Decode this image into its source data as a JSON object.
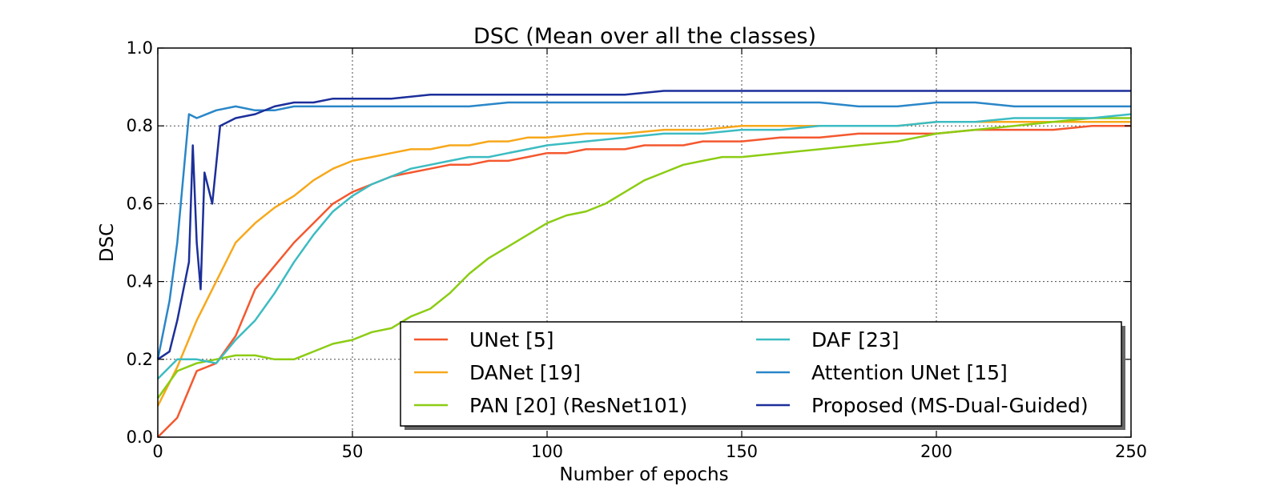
{
  "chart_data": {
    "type": "line",
    "title": "DSC (Mean over all the classes)",
    "xlabel": "Number of epochs",
    "ylabel": "DSC",
    "xlim": [
      0,
      250
    ],
    "ylim": [
      0.0,
      1.0
    ],
    "xticks": [
      0,
      50,
      100,
      150,
      200,
      250
    ],
    "yticks": [
      0.0,
      0.2,
      0.4,
      0.6,
      0.8,
      1.0
    ],
    "xtick_labels": [
      "0",
      "50",
      "100",
      "150",
      "200",
      "250"
    ],
    "ytick_labels": [
      "0.0",
      "0.2",
      "0.4",
      "0.6",
      "0.8",
      "1.0"
    ],
    "grid": true,
    "legend_position": "lower-right",
    "series": [
      {
        "name": "UNet [5]",
        "color": "#f4582f",
        "points": [
          [
            0,
            0.0
          ],
          [
            5,
            0.05
          ],
          [
            10,
            0.17
          ],
          [
            15,
            0.19
          ],
          [
            20,
            0.26
          ],
          [
            25,
            0.38
          ],
          [
            30,
            0.44
          ],
          [
            35,
            0.5
          ],
          [
            40,
            0.55
          ],
          [
            45,
            0.6
          ],
          [
            50,
            0.63
          ],
          [
            55,
            0.65
          ],
          [
            60,
            0.67
          ],
          [
            65,
            0.68
          ],
          [
            70,
            0.69
          ],
          [
            75,
            0.7
          ],
          [
            80,
            0.7
          ],
          [
            85,
            0.71
          ],
          [
            90,
            0.71
          ],
          [
            95,
            0.72
          ],
          [
            100,
            0.73
          ],
          [
            105,
            0.73
          ],
          [
            110,
            0.74
          ],
          [
            115,
            0.74
          ],
          [
            120,
            0.74
          ],
          [
            125,
            0.75
          ],
          [
            130,
            0.75
          ],
          [
            135,
            0.75
          ],
          [
            140,
            0.76
          ],
          [
            145,
            0.76
          ],
          [
            150,
            0.76
          ],
          [
            160,
            0.77
          ],
          [
            170,
            0.77
          ],
          [
            180,
            0.78
          ],
          [
            190,
            0.78
          ],
          [
            200,
            0.78
          ],
          [
            210,
            0.79
          ],
          [
            220,
            0.79
          ],
          [
            230,
            0.79
          ],
          [
            240,
            0.8
          ],
          [
            250,
            0.8
          ]
        ]
      },
      {
        "name": "DANet [19]",
        "color": "#f7a81b",
        "points": [
          [
            0,
            0.08
          ],
          [
            5,
            0.18
          ],
          [
            10,
            0.3
          ],
          [
            15,
            0.4
          ],
          [
            20,
            0.5
          ],
          [
            25,
            0.55
          ],
          [
            30,
            0.59
          ],
          [
            35,
            0.62
          ],
          [
            40,
            0.66
          ],
          [
            45,
            0.69
          ],
          [
            50,
            0.71
          ],
          [
            55,
            0.72
          ],
          [
            60,
            0.73
          ],
          [
            65,
            0.74
          ],
          [
            70,
            0.74
          ],
          [
            75,
            0.75
          ],
          [
            80,
            0.75
          ],
          [
            85,
            0.76
          ],
          [
            90,
            0.76
          ],
          [
            95,
            0.77
          ],
          [
            100,
            0.77
          ],
          [
            110,
            0.78
          ],
          [
            120,
            0.78
          ],
          [
            130,
            0.79
          ],
          [
            140,
            0.79
          ],
          [
            150,
            0.8
          ],
          [
            160,
            0.8
          ],
          [
            170,
            0.8
          ],
          [
            180,
            0.8
          ],
          [
            190,
            0.8
          ],
          [
            200,
            0.81
          ],
          [
            210,
            0.81
          ],
          [
            220,
            0.81
          ],
          [
            230,
            0.81
          ],
          [
            240,
            0.81
          ],
          [
            250,
            0.81
          ]
        ]
      },
      {
        "name": "PAN [20] (ResNet101)",
        "color": "#8ccc14",
        "points": [
          [
            0,
            0.1
          ],
          [
            5,
            0.17
          ],
          [
            10,
            0.19
          ],
          [
            15,
            0.2
          ],
          [
            20,
            0.21
          ],
          [
            25,
            0.21
          ],
          [
            30,
            0.2
          ],
          [
            35,
            0.2
          ],
          [
            40,
            0.22
          ],
          [
            45,
            0.24
          ],
          [
            50,
            0.25
          ],
          [
            55,
            0.27
          ],
          [
            60,
            0.28
          ],
          [
            65,
            0.31
          ],
          [
            70,
            0.33
          ],
          [
            75,
            0.37
          ],
          [
            80,
            0.42
          ],
          [
            85,
            0.46
          ],
          [
            90,
            0.49
          ],
          [
            95,
            0.52
          ],
          [
            100,
            0.55
          ],
          [
            105,
            0.57
          ],
          [
            110,
            0.58
          ],
          [
            115,
            0.6
          ],
          [
            120,
            0.63
          ],
          [
            125,
            0.66
          ],
          [
            130,
            0.68
          ],
          [
            135,
            0.7
          ],
          [
            140,
            0.71
          ],
          [
            145,
            0.72
          ],
          [
            150,
            0.72
          ],
          [
            160,
            0.73
          ],
          [
            170,
            0.74
          ],
          [
            180,
            0.75
          ],
          [
            190,
            0.76
          ],
          [
            200,
            0.78
          ],
          [
            210,
            0.79
          ],
          [
            220,
            0.8
          ],
          [
            230,
            0.81
          ],
          [
            240,
            0.82
          ],
          [
            250,
            0.82
          ]
        ]
      },
      {
        "name": "DAF [23]",
        "color": "#3cbcc2",
        "points": [
          [
            0,
            0.15
          ],
          [
            5,
            0.2
          ],
          [
            10,
            0.2
          ],
          [
            15,
            0.19
          ],
          [
            20,
            0.25
          ],
          [
            25,
            0.3
          ],
          [
            30,
            0.37
          ],
          [
            35,
            0.45
          ],
          [
            40,
            0.52
          ],
          [
            45,
            0.58
          ],
          [
            50,
            0.62
          ],
          [
            55,
            0.65
          ],
          [
            60,
            0.67
          ],
          [
            65,
            0.69
          ],
          [
            70,
            0.7
          ],
          [
            75,
            0.71
          ],
          [
            80,
            0.72
          ],
          [
            85,
            0.72
          ],
          [
            90,
            0.73
          ],
          [
            95,
            0.74
          ],
          [
            100,
            0.75
          ],
          [
            110,
            0.76
          ],
          [
            120,
            0.77
          ],
          [
            130,
            0.78
          ],
          [
            140,
            0.78
          ],
          [
            150,
            0.79
          ],
          [
            160,
            0.79
          ],
          [
            170,
            0.8
          ],
          [
            180,
            0.8
          ],
          [
            190,
            0.8
          ],
          [
            200,
            0.81
          ],
          [
            210,
            0.81
          ],
          [
            220,
            0.82
          ],
          [
            230,
            0.82
          ],
          [
            240,
            0.82
          ],
          [
            250,
            0.83
          ]
        ]
      },
      {
        "name": "Attention UNet [15]",
        "color": "#2a86c8",
        "points": [
          [
            0,
            0.2
          ],
          [
            3,
            0.35
          ],
          [
            5,
            0.5
          ],
          [
            8,
            0.83
          ],
          [
            10,
            0.82
          ],
          [
            15,
            0.84
          ],
          [
            20,
            0.85
          ],
          [
            25,
            0.84
          ],
          [
            30,
            0.84
          ],
          [
            35,
            0.85
          ],
          [
            40,
            0.85
          ],
          [
            45,
            0.85
          ],
          [
            50,
            0.85
          ],
          [
            60,
            0.85
          ],
          [
            70,
            0.85
          ],
          [
            80,
            0.85
          ],
          [
            90,
            0.86
          ],
          [
            100,
            0.86
          ],
          [
            110,
            0.86
          ],
          [
            120,
            0.86
          ],
          [
            130,
            0.86
          ],
          [
            140,
            0.86
          ],
          [
            150,
            0.86
          ],
          [
            160,
            0.86
          ],
          [
            170,
            0.86
          ],
          [
            180,
            0.85
          ],
          [
            190,
            0.85
          ],
          [
            200,
            0.86
          ],
          [
            210,
            0.86
          ],
          [
            220,
            0.85
          ],
          [
            230,
            0.85
          ],
          [
            240,
            0.85
          ],
          [
            250,
            0.85
          ]
        ]
      },
      {
        "name": "Proposed (MS-Dual-Guided)",
        "color": "#1c2f9a",
        "points": [
          [
            0,
            0.2
          ],
          [
            3,
            0.22
          ],
          [
            5,
            0.3
          ],
          [
            8,
            0.45
          ],
          [
            9,
            0.75
          ],
          [
            10,
            0.5
          ],
          [
            11,
            0.38
          ],
          [
            12,
            0.68
          ],
          [
            14,
            0.6
          ],
          [
            16,
            0.8
          ],
          [
            20,
            0.82
          ],
          [
            25,
            0.83
          ],
          [
            30,
            0.85
          ],
          [
            35,
            0.86
          ],
          [
            40,
            0.86
          ],
          [
            45,
            0.87
          ],
          [
            50,
            0.87
          ],
          [
            60,
            0.87
          ],
          [
            70,
            0.88
          ],
          [
            80,
            0.88
          ],
          [
            90,
            0.88
          ],
          [
            100,
            0.88
          ],
          [
            110,
            0.88
          ],
          [
            120,
            0.88
          ],
          [
            130,
            0.89
          ],
          [
            140,
            0.89
          ],
          [
            150,
            0.89
          ],
          [
            160,
            0.89
          ],
          [
            170,
            0.89
          ],
          [
            180,
            0.89
          ],
          [
            190,
            0.89
          ],
          [
            200,
            0.89
          ],
          [
            210,
            0.89
          ],
          [
            220,
            0.89
          ],
          [
            230,
            0.89
          ],
          [
            240,
            0.89
          ],
          [
            250,
            0.89
          ]
        ]
      }
    ]
  }
}
